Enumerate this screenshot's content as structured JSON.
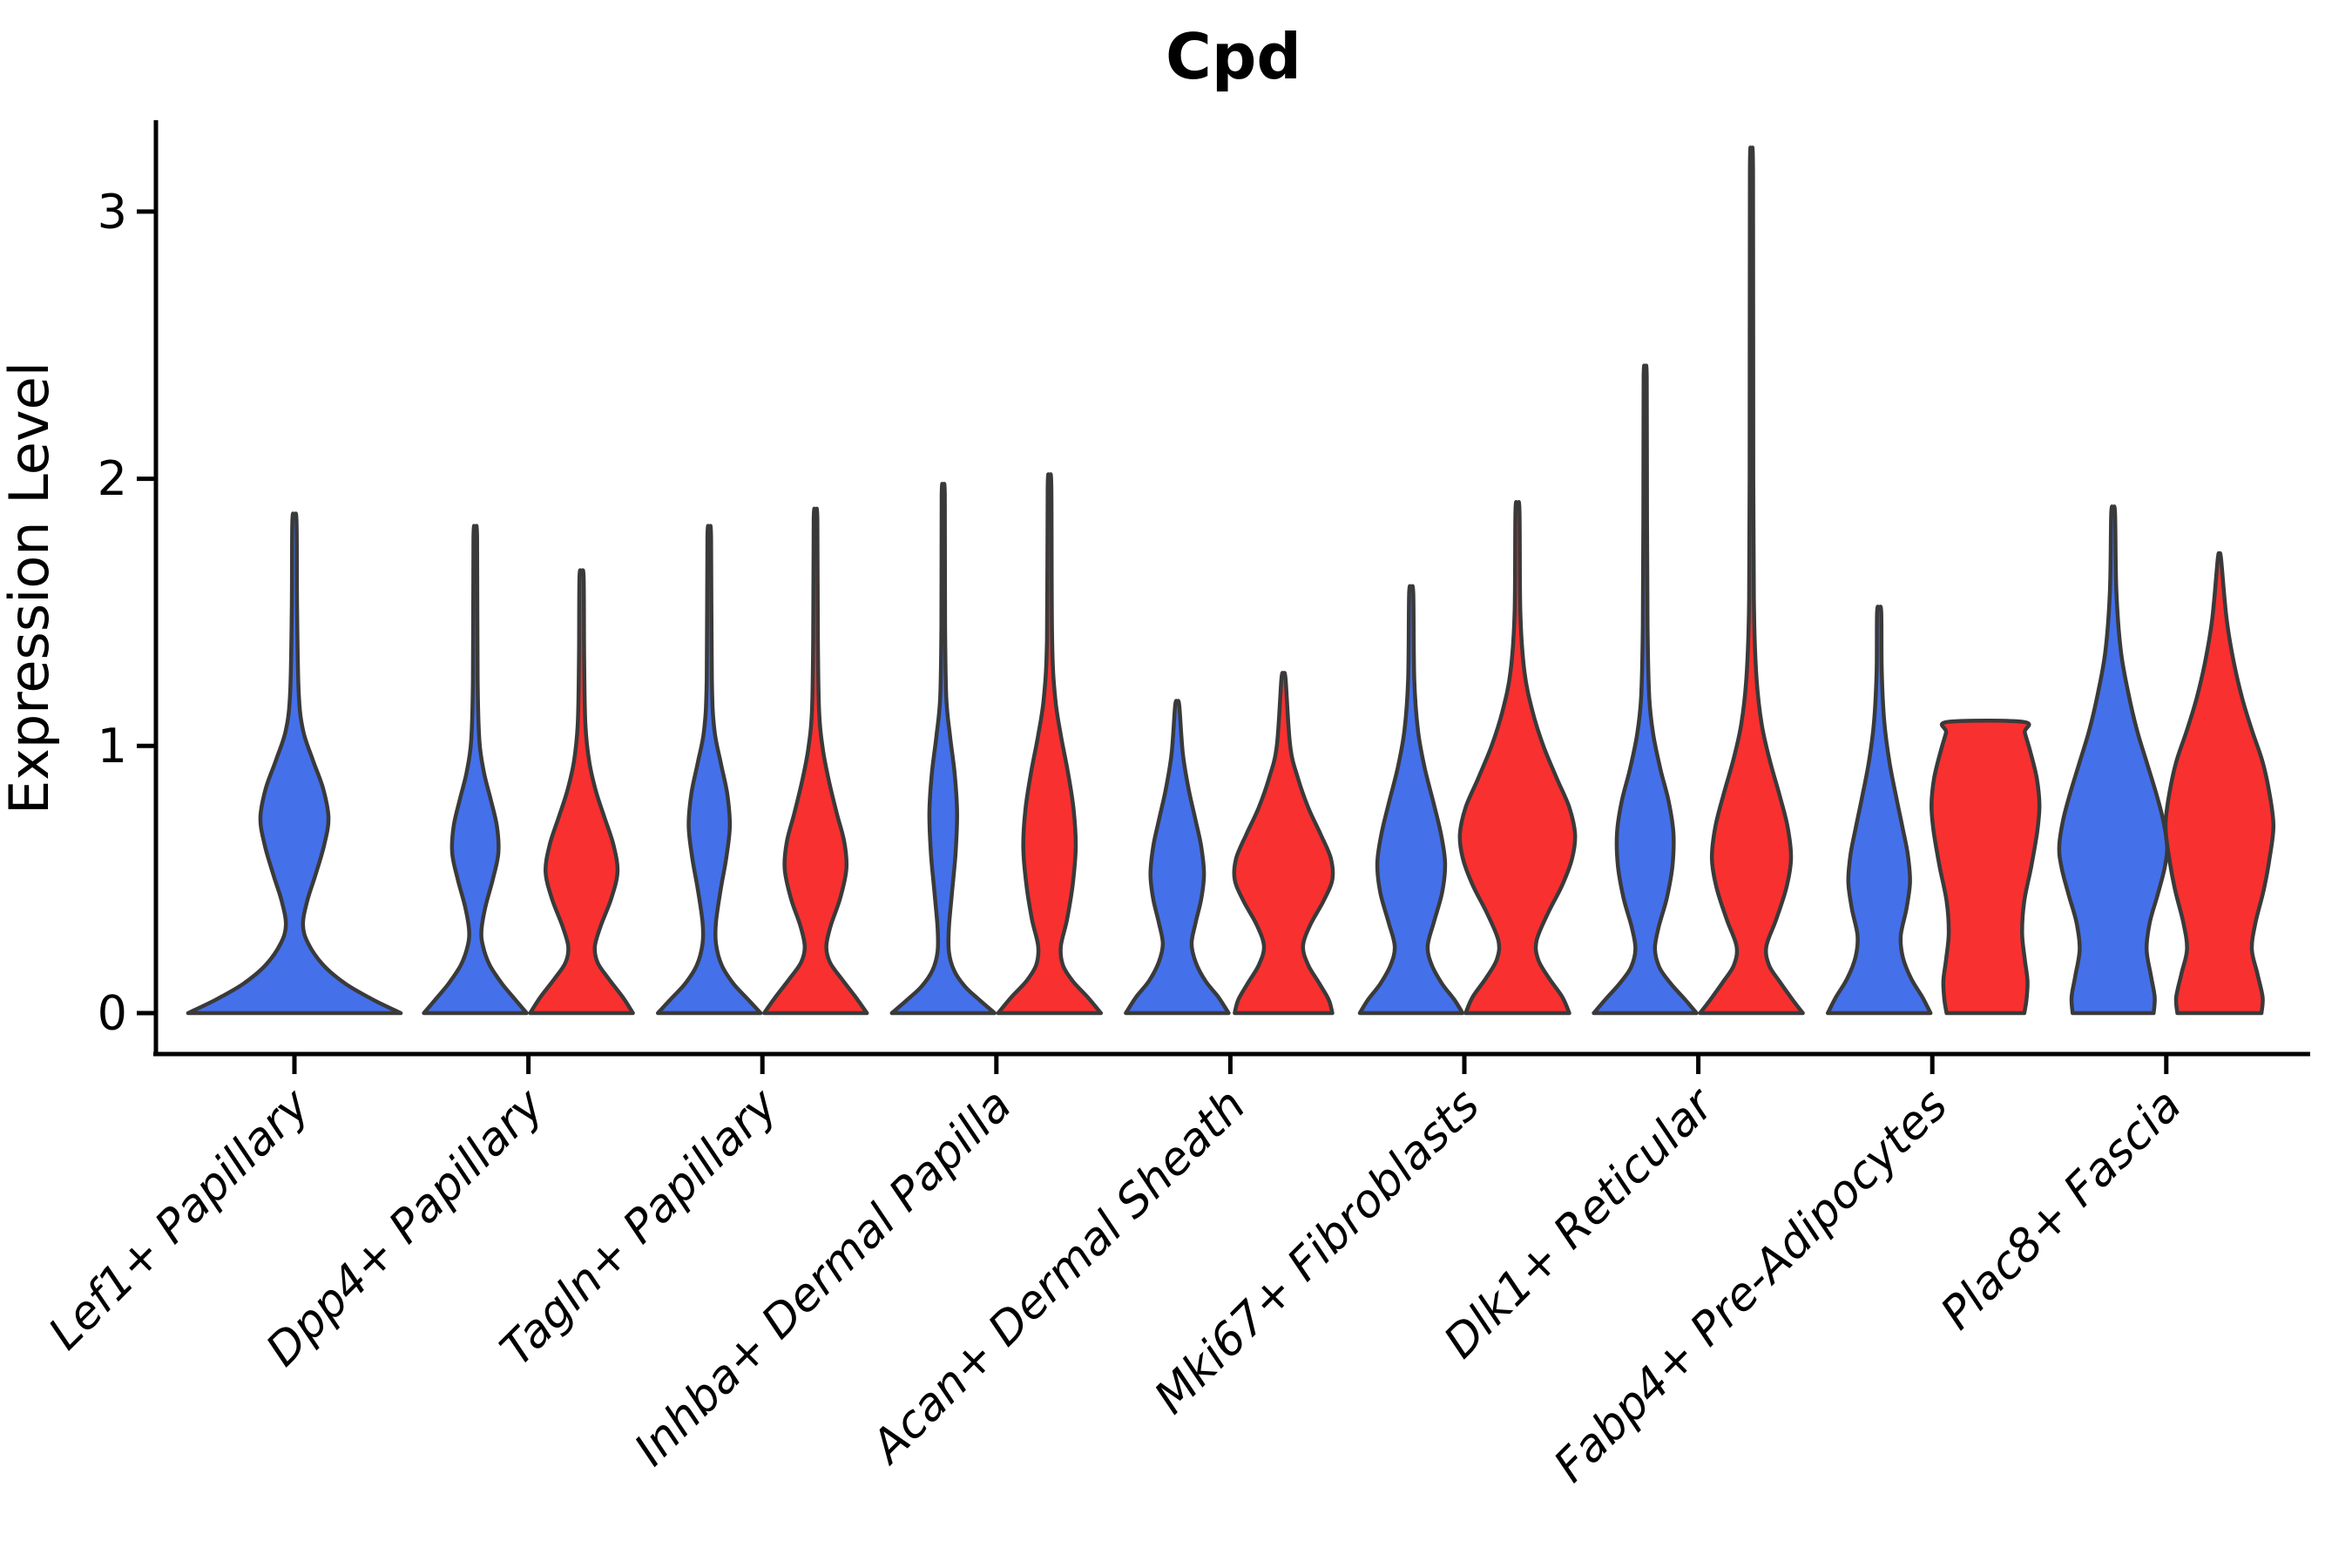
{
  "title": "Cpd",
  "y_axis": {
    "label": "Expression Level",
    "tick_labels": [
      "0",
      "1",
      "2",
      "3"
    ]
  },
  "x_axis": {
    "tick_labels": [
      "Lef1+ Papillary",
      "Dpp4+ Papillary",
      "Tagln+ Papillary",
      "Inhba+ Dermal Papilla",
      "Acan+ Dermal Sheath",
      "Mki67+ Fibroblasts",
      "Dlk1+ Reticular",
      "Fabp4+ Pre-Adipocytes",
      "Plac8+ Fascia"
    ]
  },
  "colors": {
    "blue": "#4470EA",
    "red": "#F93030",
    "outline": "#3A3A3A",
    "axis": "#000000"
  },
  "chart_data": {
    "type": "violin",
    "title": "Cpd",
    "xlabel": "",
    "ylabel": "Expression Level",
    "ylim": [
      0,
      3.34
    ],
    "yticks": [
      0,
      1,
      2,
      3
    ],
    "grid": false,
    "legend": "none",
    "categories": [
      "Lef1+ Papillary",
      "Dpp4+ Papillary",
      "Tagln+ Papillary",
      "Inhba+ Dermal Papilla",
      "Acan+ Dermal Sheath",
      "Mki67+ Fibroblasts",
      "Dlk1+ Reticular",
      "Fabp4+ Pre-Adipocytes",
      "Plac8+ Fascia"
    ],
    "series": [
      {
        "id": "blue",
        "color": "#4470EA"
      },
      {
        "id": "red",
        "color": "#F93030"
      }
    ],
    "violins": [
      {
        "category_index": 0,
        "category": "Lef1+ Papillary",
        "series": "blue",
        "dodge": "center",
        "relative_width": 2.07,
        "max_value": 1.84,
        "profile": [
          [
            0,
            1
          ],
          [
            0.05,
            0.74
          ],
          [
            0.11,
            0.48
          ],
          [
            0.18,
            0.27
          ],
          [
            0.26,
            0.13
          ],
          [
            0.33,
            0.08
          ],
          [
            0.42,
            0.12
          ],
          [
            0.52,
            0.2
          ],
          [
            0.63,
            0.28
          ],
          [
            0.73,
            0.32
          ],
          [
            0.84,
            0.27
          ],
          [
            0.95,
            0.17
          ],
          [
            1.06,
            0.08
          ],
          [
            1.2,
            0.04
          ],
          [
            1.5,
            0.025
          ],
          [
            1.84,
            0.02
          ]
        ]
      },
      {
        "category_index": 1,
        "category": "Dpp4+ Papillary",
        "series": "blue",
        "dodge": "left",
        "relative_width": 1.0,
        "max_value": 1.78,
        "profile": [
          [
            0,
            1
          ],
          [
            0.05,
            0.78
          ],
          [
            0.11,
            0.52
          ],
          [
            0.18,
            0.28
          ],
          [
            0.25,
            0.15
          ],
          [
            0.31,
            0.12
          ],
          [
            0.4,
            0.2
          ],
          [
            0.5,
            0.34
          ],
          [
            0.6,
            0.45
          ],
          [
            0.7,
            0.42
          ],
          [
            0.8,
            0.3
          ],
          [
            0.9,
            0.17
          ],
          [
            1.02,
            0.08
          ],
          [
            1.25,
            0.045
          ],
          [
            1.78,
            0.035
          ]
        ]
      },
      {
        "category_index": 1,
        "category": "Dpp4+ Papillary",
        "series": "red",
        "dodge": "right",
        "relative_width": 1.0,
        "max_value": 1.63,
        "profile": [
          [
            0,
            1
          ],
          [
            0.06,
            0.8
          ],
          [
            0.13,
            0.52
          ],
          [
            0.19,
            0.31
          ],
          [
            0.25,
            0.26
          ],
          [
            0.33,
            0.38
          ],
          [
            0.43,
            0.58
          ],
          [
            0.53,
            0.7
          ],
          [
            0.63,
            0.62
          ],
          [
            0.73,
            0.45
          ],
          [
            0.83,
            0.28
          ],
          [
            0.94,
            0.15
          ],
          [
            1.08,
            0.075
          ],
          [
            1.32,
            0.05
          ],
          [
            1.63,
            0.04
          ]
        ]
      },
      {
        "category_index": 2,
        "category": "Tagln+ Papillary",
        "series": "blue",
        "dodge": "left",
        "relative_width": 1.0,
        "max_value": 1.78,
        "profile": [
          [
            0,
            1
          ],
          [
            0.05,
            0.76
          ],
          [
            0.11,
            0.47
          ],
          [
            0.18,
            0.24
          ],
          [
            0.26,
            0.13
          ],
          [
            0.34,
            0.13
          ],
          [
            0.46,
            0.22
          ],
          [
            0.58,
            0.33
          ],
          [
            0.7,
            0.4
          ],
          [
            0.82,
            0.35
          ],
          [
            0.94,
            0.22
          ],
          [
            1.06,
            0.1
          ],
          [
            1.25,
            0.05
          ],
          [
            1.78,
            0.035
          ]
        ]
      },
      {
        "category_index": 2,
        "category": "Tagln+ Papillary",
        "series": "red",
        "dodge": "right",
        "relative_width": 1.0,
        "max_value": 1.85,
        "profile": [
          [
            0,
            1
          ],
          [
            0.06,
            0.78
          ],
          [
            0.13,
            0.5
          ],
          [
            0.19,
            0.28
          ],
          [
            0.25,
            0.21
          ],
          [
            0.33,
            0.3
          ],
          [
            0.43,
            0.48
          ],
          [
            0.54,
            0.6
          ],
          [
            0.64,
            0.56
          ],
          [
            0.75,
            0.41
          ],
          [
            0.87,
            0.26
          ],
          [
            0.99,
            0.14
          ],
          [
            1.13,
            0.07
          ],
          [
            1.4,
            0.045
          ],
          [
            1.85,
            0.035
          ]
        ]
      },
      {
        "category_index": 3,
        "category": "Inhba+ Dermal Papilla",
        "series": "blue",
        "dodge": "left",
        "relative_width": 1.0,
        "max_value": 1.94,
        "profile": [
          [
            0,
            1
          ],
          [
            0.05,
            0.7
          ],
          [
            0.1,
            0.42
          ],
          [
            0.16,
            0.21
          ],
          [
            0.23,
            0.11
          ],
          [
            0.32,
            0.11
          ],
          [
            0.45,
            0.17
          ],
          [
            0.6,
            0.24
          ],
          [
            0.75,
            0.27
          ],
          [
            0.9,
            0.22
          ],
          [
            1.04,
            0.13
          ],
          [
            1.18,
            0.06
          ],
          [
            1.45,
            0.035
          ],
          [
            1.94,
            0.03
          ]
        ]
      },
      {
        "category_index": 3,
        "category": "Inhba+ Dermal Papilla",
        "series": "red",
        "dodge": "right",
        "relative_width": 1.0,
        "max_value": 1.97,
        "profile": [
          [
            0,
            1
          ],
          [
            0.06,
            0.74
          ],
          [
            0.12,
            0.45
          ],
          [
            0.18,
            0.26
          ],
          [
            0.25,
            0.22
          ],
          [
            0.35,
            0.34
          ],
          [
            0.48,
            0.45
          ],
          [
            0.62,
            0.51
          ],
          [
            0.76,
            0.47
          ],
          [
            0.9,
            0.36
          ],
          [
            1.04,
            0.22
          ],
          [
            1.18,
            0.11
          ],
          [
            1.4,
            0.05
          ],
          [
            1.97,
            0.035
          ]
        ]
      },
      {
        "category_index": 4,
        "category": "Acan+ Dermal Sheath",
        "series": "blue",
        "dodge": "left",
        "relative_width": 1.0,
        "max_value": 1.15,
        "profile": [
          [
            0,
            1
          ],
          [
            0.06,
            0.8
          ],
          [
            0.12,
            0.55
          ],
          [
            0.19,
            0.36
          ],
          [
            0.26,
            0.28
          ],
          [
            0.34,
            0.36
          ],
          [
            0.43,
            0.47
          ],
          [
            0.52,
            0.52
          ],
          [
            0.62,
            0.47
          ],
          [
            0.72,
            0.36
          ],
          [
            0.84,
            0.22
          ],
          [
            0.97,
            0.11
          ],
          [
            1.15,
            0.04
          ]
        ]
      },
      {
        "category_index": 4,
        "category": "Acan+ Dermal Sheath",
        "series": "red",
        "dodge": "right",
        "relative_width": 1.0,
        "max_value": 1.25,
        "profile": [
          [
            0,
            0.95
          ],
          [
            0.05,
            0.88
          ],
          [
            0.11,
            0.7
          ],
          [
            0.18,
            0.48
          ],
          [
            0.25,
            0.38
          ],
          [
            0.33,
            0.52
          ],
          [
            0.42,
            0.78
          ],
          [
            0.5,
            0.95
          ],
          [
            0.58,
            0.92
          ],
          [
            0.67,
            0.72
          ],
          [
            0.77,
            0.48
          ],
          [
            0.88,
            0.28
          ],
          [
            1.0,
            0.13
          ],
          [
            1.25,
            0.04
          ]
        ]
      },
      {
        "category_index": 5,
        "category": "Mki67+ Fibroblasts",
        "series": "blue",
        "dodge": "left",
        "relative_width": 1.0,
        "max_value": 1.57,
        "profile": [
          [
            0,
            1
          ],
          [
            0.05,
            0.84
          ],
          [
            0.11,
            0.6
          ],
          [
            0.18,
            0.4
          ],
          [
            0.25,
            0.32
          ],
          [
            0.34,
            0.44
          ],
          [
            0.45,
            0.6
          ],
          [
            0.56,
            0.66
          ],
          [
            0.67,
            0.58
          ],
          [
            0.79,
            0.43
          ],
          [
            0.92,
            0.26
          ],
          [
            1.06,
            0.13
          ],
          [
            1.25,
            0.06
          ],
          [
            1.57,
            0.04
          ]
        ]
      },
      {
        "category_index": 5,
        "category": "Mki67+ Fibroblasts",
        "series": "red",
        "dodge": "right",
        "relative_width": 1.12,
        "max_value": 1.88,
        "profile": [
          [
            0,
            0.9
          ],
          [
            0.06,
            0.78
          ],
          [
            0.13,
            0.55
          ],
          [
            0.2,
            0.36
          ],
          [
            0.27,
            0.33
          ],
          [
            0.37,
            0.52
          ],
          [
            0.48,
            0.78
          ],
          [
            0.58,
            0.95
          ],
          [
            0.67,
            1
          ],
          [
            0.77,
            0.9
          ],
          [
            0.88,
            0.68
          ],
          [
            1.0,
            0.45
          ],
          [
            1.13,
            0.26
          ],
          [
            1.28,
            0.12
          ],
          [
            1.5,
            0.05
          ],
          [
            1.88,
            0.035
          ]
        ]
      },
      {
        "category_index": 6,
        "category": "Dlk1+ Reticular",
        "series": "blue",
        "dodge": "left",
        "relative_width": 1.0,
        "max_value": 2.38,
        "profile": [
          [
            0,
            1
          ],
          [
            0.05,
            0.78
          ],
          [
            0.11,
            0.5
          ],
          [
            0.17,
            0.28
          ],
          [
            0.24,
            0.19
          ],
          [
            0.32,
            0.26
          ],
          [
            0.43,
            0.42
          ],
          [
            0.55,
            0.53
          ],
          [
            0.67,
            0.55
          ],
          [
            0.79,
            0.46
          ],
          [
            0.91,
            0.3
          ],
          [
            1.04,
            0.16
          ],
          [
            1.18,
            0.08
          ],
          [
            1.45,
            0.045
          ],
          [
            1.85,
            0.035
          ],
          [
            2.38,
            0.03
          ]
        ]
      },
      {
        "category_index": 6,
        "category": "Dlk1+ Reticular",
        "series": "red",
        "dodge": "right",
        "relative_width": 1.0,
        "max_value": 3.15,
        "profile": [
          [
            0,
            1
          ],
          [
            0.05,
            0.8
          ],
          [
            0.12,
            0.54
          ],
          [
            0.18,
            0.34
          ],
          [
            0.25,
            0.29
          ],
          [
            0.35,
            0.48
          ],
          [
            0.47,
            0.68
          ],
          [
            0.58,
            0.77
          ],
          [
            0.7,
            0.7
          ],
          [
            0.82,
            0.54
          ],
          [
            0.95,
            0.35
          ],
          [
            1.08,
            0.2
          ],
          [
            1.25,
            0.1
          ],
          [
            1.5,
            0.05
          ],
          [
            2.0,
            0.035
          ],
          [
            3.15,
            0.03
          ]
        ]
      },
      {
        "category_index": 7,
        "category": "Fabp4+ Pre-Adipocytes",
        "series": "blue",
        "dodge": "left",
        "relative_width": 1.0,
        "max_value": 1.5,
        "profile": [
          [
            0,
            1
          ],
          [
            0.06,
            0.84
          ],
          [
            0.13,
            0.62
          ],
          [
            0.21,
            0.46
          ],
          [
            0.29,
            0.42
          ],
          [
            0.39,
            0.53
          ],
          [
            0.49,
            0.6
          ],
          [
            0.59,
            0.56
          ],
          [
            0.69,
            0.46
          ],
          [
            0.81,
            0.33
          ],
          [
            0.94,
            0.2
          ],
          [
            1.09,
            0.1
          ],
          [
            1.28,
            0.05
          ],
          [
            1.5,
            0.04
          ]
        ]
      },
      {
        "category_index": 7,
        "category": "Fabp4+ Pre-Adipocytes",
        "series": "red",
        "dodge": "right",
        "relative_width": 1.05,
        "max_value": 1.09,
        "flat_top": true,
        "profile": [
          [
            0,
            0.72
          ],
          [
            0.05,
            0.76
          ],
          [
            0.12,
            0.78
          ],
          [
            0.2,
            0.73
          ],
          [
            0.3,
            0.68
          ],
          [
            0.42,
            0.72
          ],
          [
            0.55,
            0.85
          ],
          [
            0.68,
            0.96
          ],
          [
            0.78,
            1
          ],
          [
            0.88,
            0.95
          ],
          [
            0.98,
            0.83
          ],
          [
            1.05,
            0.73
          ],
          [
            1.09,
            0.7
          ]
        ]
      },
      {
        "category_index": 8,
        "category": "Plac8+ Fascia",
        "series": "blue",
        "dodge": "left",
        "relative_width": 1.05,
        "max_value": 1.87,
        "profile": [
          [
            0,
            0.75
          ],
          [
            0.06,
            0.77
          ],
          [
            0.14,
            0.7
          ],
          [
            0.24,
            0.62
          ],
          [
            0.34,
            0.68
          ],
          [
            0.44,
            0.82
          ],
          [
            0.54,
            0.95
          ],
          [
            0.62,
            1
          ],
          [
            0.72,
            0.93
          ],
          [
            0.82,
            0.8
          ],
          [
            0.94,
            0.62
          ],
          [
            1.06,
            0.44
          ],
          [
            1.2,
            0.28
          ],
          [
            1.36,
            0.14
          ],
          [
            1.58,
            0.06
          ],
          [
            1.87,
            0.035
          ]
        ]
      },
      {
        "category_index": 8,
        "category": "Plac8+ Fascia",
        "series": "red",
        "dodge": "right",
        "relative_width": 1.05,
        "max_value": 1.7,
        "profile": [
          [
            0,
            0.78
          ],
          [
            0.06,
            0.8
          ],
          [
            0.15,
            0.7
          ],
          [
            0.24,
            0.6
          ],
          [
            0.34,
            0.67
          ],
          [
            0.46,
            0.82
          ],
          [
            0.58,
            0.93
          ],
          [
            0.7,
            1
          ],
          [
            0.82,
            0.93
          ],
          [
            0.94,
            0.8
          ],
          [
            1.06,
            0.6
          ],
          [
            1.18,
            0.42
          ],
          [
            1.32,
            0.26
          ],
          [
            1.48,
            0.13
          ],
          [
            1.7,
            0.03
          ]
        ]
      }
    ]
  }
}
